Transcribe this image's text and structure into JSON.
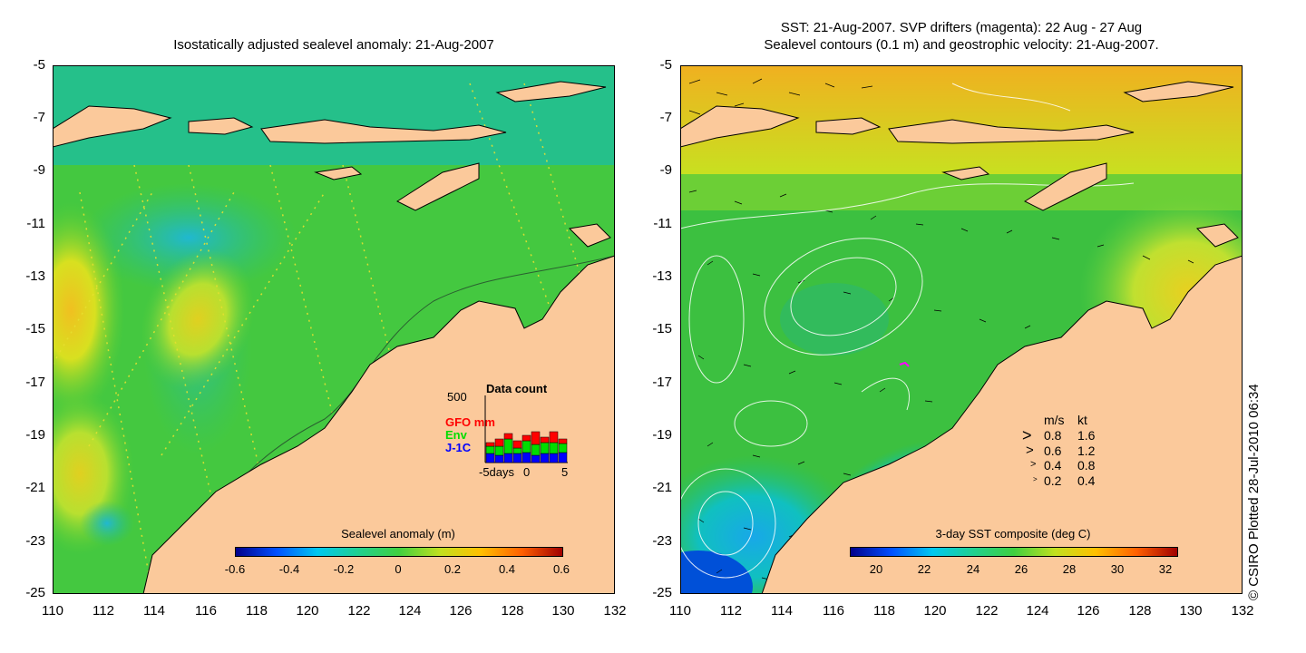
{
  "left_panel": {
    "title": "Isostatically adjusted sealevel anomaly: 21-Aug-2007",
    "y_ticks": [
      "-5",
      "-7",
      "-9",
      "-11",
      "-13",
      "-15",
      "-17",
      "-19",
      "-21",
      "-23",
      "-25"
    ],
    "x_ticks": [
      "110",
      "112",
      "114",
      "116",
      "118",
      "120",
      "122",
      "124",
      "126",
      "128",
      "130",
      "132"
    ],
    "colorbar": {
      "label": "Sealevel anomaly (m)",
      "ticks": [
        "-0.6",
        "-0.4",
        "-0.2",
        "0",
        "0.2",
        "0.4",
        "0.6"
      ]
    },
    "data_count_inset": {
      "title": "Data count",
      "y_max_label": "500",
      "series": [
        {
          "name": "GFO mm",
          "color": "#ff0000"
        },
        {
          "name": "Env",
          "color": "#00dd00"
        },
        {
          "name": "J-1C",
          "color": "#0000ff"
        }
      ],
      "x_labels": [
        "-5days",
        "0",
        "5"
      ]
    }
  },
  "right_panel": {
    "title_line1": "SST: 21-Aug-2007. SVP drifters (magenta): 22 Aug - 27 Aug",
    "title_line2": "Sealevel contours (0.1 m) and geostrophic velocity: 21-Aug-2007.",
    "y_ticks": [
      "-5",
      "-7",
      "-9",
      "-11",
      "-13",
      "-15",
      "-17",
      "-19",
      "-21",
      "-23",
      "-25"
    ],
    "x_ticks": [
      "110",
      "112",
      "114",
      "116",
      "118",
      "120",
      "122",
      "124",
      "126",
      "128",
      "130",
      "132"
    ],
    "colorbar": {
      "label": "3-day SST composite (deg C)",
      "ticks": [
        "20",
        "22",
        "24",
        "26",
        "28",
        "30",
        "32"
      ]
    },
    "velocity_legend": {
      "header_ms": "m/s",
      "header_kt": "kt",
      "rows": [
        {
          "ms": "0.8",
          "kt": "1.6"
        },
        {
          "ms": "0.6",
          "kt": "1.2"
        },
        {
          "ms": "0.4",
          "kt": "0.8"
        },
        {
          "ms": "0.2",
          "kt": "0.4"
        }
      ]
    }
  },
  "credit": "© CSIRO Plotted 28-Jul-2010 06:34",
  "colors": {
    "land": "#fbc99b",
    "ocean_green": "#3cc83c",
    "ocean_teal": "#1fb3a0",
    "anomaly_yellow": "#e8e61e"
  }
}
